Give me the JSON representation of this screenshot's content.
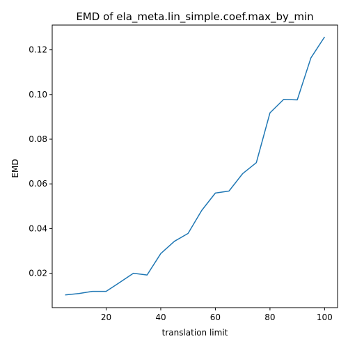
{
  "chart_data": {
    "type": "line",
    "title": "EMD of ela_meta.lin_simple.coef.max_by_min",
    "xlabel": "translation limit",
    "ylabel": "EMD",
    "xlim": [
      0.25,
      104.75
    ],
    "ylim": [
      0.0046,
      0.1311
    ],
    "x_ticks": [
      20,
      40,
      60,
      80,
      100
    ],
    "x_tick_labels": [
      "20",
      "40",
      "60",
      "80",
      "100"
    ],
    "y_ticks": [
      0.02,
      0.04,
      0.06,
      0.08,
      0.1,
      0.12
    ],
    "y_tick_labels": [
      "0.02",
      "0.04",
      "0.06",
      "0.08",
      "0.10",
      "0.12"
    ],
    "grid": false,
    "series": [
      {
        "color": "#1f77b4",
        "x": [
          5,
          10,
          15,
          20,
          25,
          30,
          35,
          40,
          45,
          50,
          55,
          60,
          65,
          70,
          75,
          80,
          85,
          90,
          95,
          100
        ],
        "y": [
          0.0103,
          0.0109,
          0.0119,
          0.0119,
          0.0159,
          0.02,
          0.0192,
          0.0288,
          0.0343,
          0.0378,
          0.0481,
          0.0559,
          0.0568,
          0.0646,
          0.0695,
          0.0918,
          0.0978,
          0.0976,
          0.1164,
          0.1258
        ]
      }
    ]
  }
}
